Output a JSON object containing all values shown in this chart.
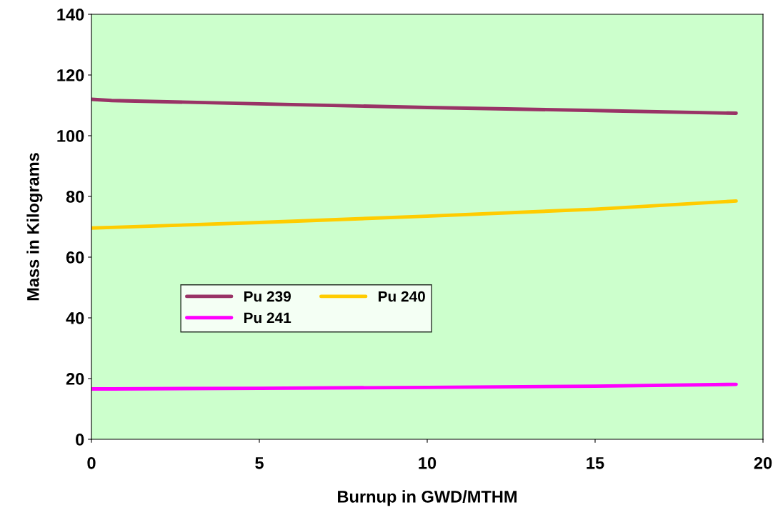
{
  "chart_data": {
    "type": "line",
    "xlabel": "Burnup in GWD/MTHM",
    "ylabel": "Mass in Kilograms",
    "x": [
      0,
      0.6,
      5,
      10,
      15,
      19.2
    ],
    "series": [
      {
        "name": "Pu 239",
        "color": "#993366",
        "values": [
          112,
          111.6,
          110.5,
          109.3,
          108.3,
          107.4
        ]
      },
      {
        "name": "Pu 240",
        "color": "#ffcc00",
        "values": [
          69.6,
          69.8,
          71.4,
          73.5,
          75.8,
          78.5
        ]
      },
      {
        "name": "Pu 241",
        "color": "#ff00ff",
        "values": [
          16.6,
          16.6,
          16.8,
          17.1,
          17.5,
          18.1
        ]
      }
    ],
    "xlim": [
      0,
      20
    ],
    "xticks": [
      0,
      5,
      10,
      15,
      20
    ],
    "ylim": [
      0,
      140
    ],
    "yticks": [
      0,
      20,
      40,
      60,
      80,
      100,
      120,
      140
    ],
    "grid": false,
    "legend": "center left",
    "marker": "none",
    "line_style": "solid"
  }
}
